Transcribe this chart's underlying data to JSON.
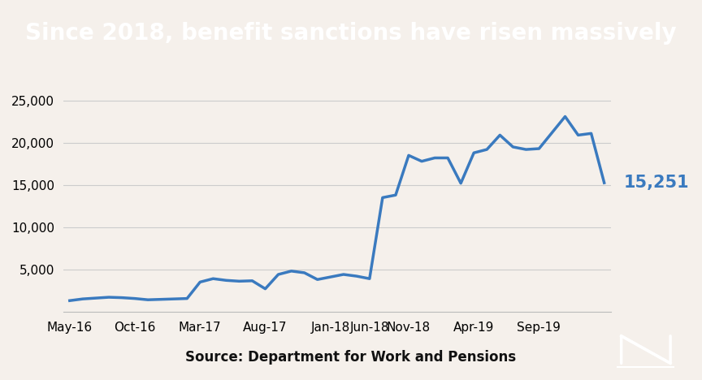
{
  "title": "Since 2018, benefit sanctions have risen massively",
  "title_bg": "#000000",
  "title_color": "#ffffff",
  "bg_color": "#f5f0eb",
  "line_color": "#3a7abf",
  "source_text": "Source: Department for Work and Pensions",
  "last_label": "15,251",
  "last_label_color": "#3a7abf",
  "ylim": [
    0,
    27000
  ],
  "yticks": [
    5000,
    10000,
    15000,
    20000,
    25000
  ],
  "xtick_labels": [
    "May-16",
    "Oct-16",
    "Mar-17",
    "Aug-17",
    "Jan-18",
    "Jun-18",
    "Nov-18",
    "Apr-19",
    "Sep-19"
  ],
  "y_values": [
    1300,
    1500,
    1600,
    1700,
    1650,
    1550,
    1400,
    1450,
    1500,
    1550,
    3500,
    3900,
    3700,
    3600,
    3650,
    2700,
    4400,
    4800,
    4600,
    3800,
    4100,
    4400,
    4200,
    3900,
    13500,
    13800,
    18500,
    17800,
    18200,
    18200,
    15200,
    18800,
    19200,
    20900,
    19500,
    19200,
    19300,
    21200,
    23100,
    20900,
    21100,
    15251
  ],
  "xtick_positions": [
    0,
    5,
    10,
    15,
    20,
    23,
    26,
    31,
    36
  ],
  "line_width": 2.5,
  "title_fontsize": 20,
  "tick_fontsize": 11,
  "source_fontsize": 12
}
